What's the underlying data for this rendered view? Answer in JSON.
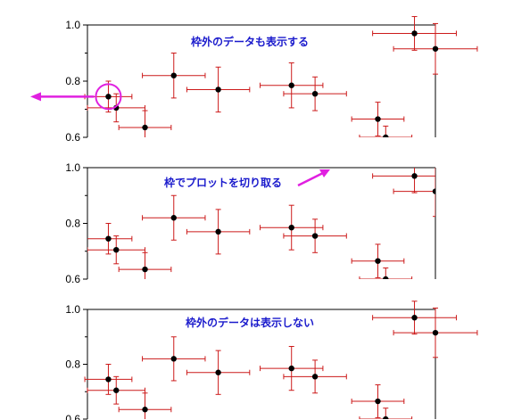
{
  "chart_data": [
    {
      "type": "scatter",
      "annotation": "枠外のデータも表示する",
      "ylim": [
        0.6,
        1.0
      ],
      "ticks": [
        "1.0",
        "0.8",
        "0.6"
      ],
      "points": [
        {
          "x": 0.8,
          "y": 0.745,
          "xerr": 0.9,
          "yerr": 0.055
        },
        {
          "x": 1.1,
          "y": 0.705,
          "xerr": 1.1,
          "yerr": 0.05
        },
        {
          "x": 2.2,
          "y": 0.635,
          "xerr": 1.0,
          "yerr": 0.06
        },
        {
          "x": 3.3,
          "y": 0.82,
          "xerr": 1.2,
          "yerr": 0.08
        },
        {
          "x": 5.0,
          "y": 0.77,
          "xerr": 1.2,
          "yerr": 0.08
        },
        {
          "x": 7.8,
          "y": 0.785,
          "xerr": 1.2,
          "yerr": 0.08
        },
        {
          "x": 8.7,
          "y": 0.755,
          "xerr": 1.2,
          "yerr": 0.06
        },
        {
          "x": 11.1,
          "y": 0.665,
          "xerr": 1.0,
          "yerr": 0.06
        },
        {
          "x": 11.4,
          "y": 0.6,
          "xerr": 1.0,
          "yerr": 0.04
        },
        {
          "x": 12.5,
          "y": 0.97,
          "xerr": 1.6,
          "yerr": 0.06
        },
        {
          "x": 13.3,
          "y": 0.915,
          "xerr": 1.6,
          "yerr": 0.09
        }
      ]
    },
    {
      "type": "scatter",
      "annotation": "枠でプロットを切り取る",
      "ylim": [
        0.6,
        1.0
      ],
      "ticks": [
        "1.0",
        "0.8",
        "0.6"
      ]
    },
    {
      "type": "scatter",
      "annotation": "枠外のデータは表示しない",
      "ylim": [
        0.6,
        1.0
      ],
      "ticks": [
        "1.0",
        "0.8",
        "0.6"
      ]
    }
  ],
  "colors": {
    "error_bar": "#cc1a1a",
    "annotation_text": "#1a1acc",
    "highlight": "#e020e0"
  },
  "icons": {
    "highlight": "circle-highlight-icon",
    "arrow": "magenta-arrow-icon"
  }
}
